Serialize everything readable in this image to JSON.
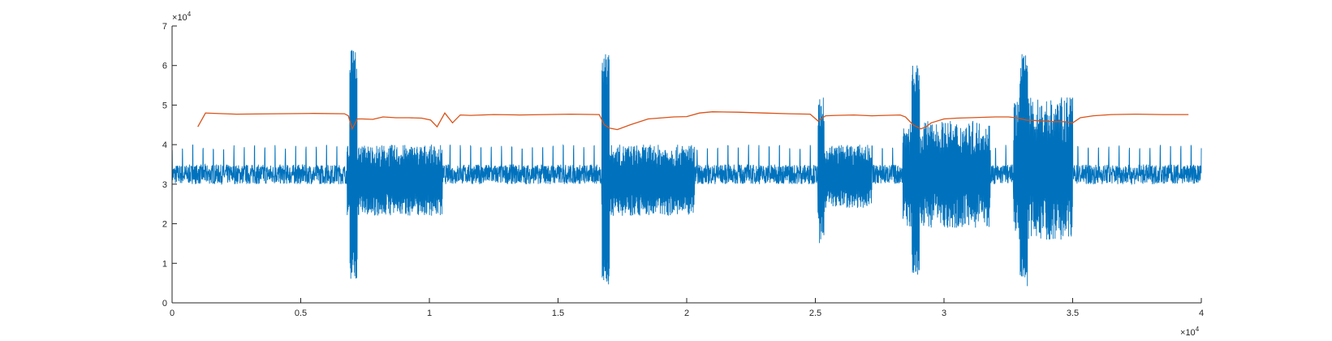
{
  "chart_data": {
    "type": "line",
    "title": "",
    "xlabel": "",
    "ylabel": "",
    "xlim": [
      0,
      40000
    ],
    "ylim": [
      0,
      70000
    ],
    "grid": false,
    "x_ticks": [
      0,
      5000,
      10000,
      15000,
      20000,
      25000,
      30000,
      35000,
      40000
    ],
    "x_tick_labels": [
      "0",
      "0.5",
      "1",
      "1.5",
      "2",
      "2.5",
      "3",
      "3.5",
      "4"
    ],
    "y_ticks": [
      0,
      10000,
      20000,
      30000,
      40000,
      50000,
      60000,
      70000
    ],
    "y_tick_labels": [
      "0",
      "1",
      "2",
      "3",
      "4",
      "5",
      "6",
      "7"
    ],
    "x_exponent": {
      "base": "10",
      "power": "4"
    },
    "y_exponent": {
      "base": "10",
      "power": "4"
    },
    "colors": {
      "signal": "#0072BD",
      "envelope": "#D95319",
      "axis": "#262626"
    },
    "series": [
      {
        "label_role": "signal",
        "baseline": 32500,
        "quiet_spread": 2500,
        "spike_every": 400,
        "spike_peak": 40000,
        "bursts": [
          {
            "start": 6800,
            "end": 10500,
            "low": 22000,
            "high": 40000,
            "peak_x": 7050,
            "peak_high": 64000,
            "peak_low": 6000
          },
          {
            "start": 16700,
            "end": 20300,
            "low": 22000,
            "high": 40000,
            "peak_x": 16850,
            "peak_high": 63000,
            "peak_low": 4000
          },
          {
            "start": 25100,
            "end": 27200,
            "low": 24000,
            "high": 40000,
            "peak_x": 25200,
            "peak_high": 52000,
            "peak_low": 15000
          },
          {
            "start": 28400,
            "end": 31800,
            "low": 19000,
            "high": 46000,
            "peak_x": 28900,
            "peak_high": 61000,
            "peak_low": 7000
          },
          {
            "start": 32700,
            "end": 35000,
            "low": 16000,
            "high": 52000,
            "peak_x": 33100,
            "peak_high": 63000,
            "peak_low": 4000
          }
        ]
      },
      {
        "label_role": "envelope",
        "x": [
          1000,
          1300,
          2500,
          4000,
          5500,
          6700,
          6850,
          7000,
          7200,
          7400,
          7800,
          8200,
          8700,
          9200,
          9700,
          10050,
          10300,
          10600,
          10900,
          11200,
          11600,
          12500,
          13500,
          14500,
          15500,
          16600,
          16800,
          17000,
          17300,
          17800,
          18500,
          19500,
          20000,
          20500,
          21000,
          22000,
          23000,
          24000,
          24800,
          25100,
          25400,
          25800,
          26500,
          27200,
          27700,
          28300,
          28500,
          28800,
          29100,
          29300,
          29500,
          30000,
          30500,
          31000,
          31500,
          32000,
          32500,
          32800,
          33200,
          33800,
          34300,
          34700,
          35000,
          35300,
          35800,
          36500,
          37500,
          38500,
          39500
        ],
        "y": [
          44500,
          48000,
          47700,
          47800,
          47900,
          47800,
          47300,
          44000,
          46500,
          46500,
          46400,
          47000,
          46800,
          46800,
          46700,
          46200,
          44500,
          48000,
          45500,
          47500,
          47400,
          47600,
          47500,
          47600,
          47700,
          47600,
          45000,
          44200,
          43800,
          45000,
          46500,
          47000,
          47100,
          48000,
          48300,
          48200,
          48000,
          47800,
          47700,
          46000,
          47300,
          47400,
          47500,
          47300,
          47400,
          47500,
          47000,
          45000,
          44000,
          44500,
          45500,
          46500,
          46700,
          46800,
          46900,
          47000,
          47000,
          46800,
          46200,
          46000,
          45800,
          45800,
          45500,
          46800,
          47300,
          47600,
          47700,
          47600,
          47600
        ]
      }
    ]
  }
}
